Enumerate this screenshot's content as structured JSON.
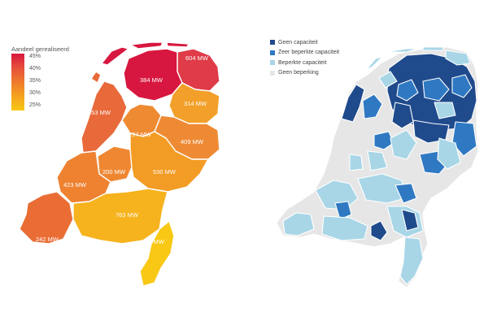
{
  "left_map": {
    "legend": {
      "title": "Aandeel gerealiseerd",
      "ticks": [
        "45%",
        "40%",
        "35%",
        "30%",
        "25%"
      ],
      "colors": [
        "#d7173f",
        "#e5503b",
        "#ee7a2c",
        "#f4a31e",
        "#f7c815"
      ]
    },
    "regions": [
      {
        "id": "groningen",
        "label": "604 MW",
        "color": "#df3b48"
      },
      {
        "id": "friesland",
        "label": "384 MW",
        "color": "#d7173f"
      },
      {
        "id": "drenthe",
        "label": "314 MW",
        "color": "#f2a02a"
      },
      {
        "id": "flevoland",
        "label": "297 MW",
        "color": "#ee8a32"
      },
      {
        "id": "noord-holland",
        "label": "453 MW",
        "color": "#e8693a"
      },
      {
        "id": "overijssel",
        "label": "409 MW",
        "color": "#ef8a34"
      },
      {
        "id": "gelderland",
        "label": "530 MW",
        "color": "#f39c25"
      },
      {
        "id": "utrecht",
        "label": "200 MW",
        "color": "#ef8732"
      },
      {
        "id": "zuid-holland",
        "label": "423 MW",
        "color": "#ee8231"
      },
      {
        "id": "zeeland",
        "label": "242 MW",
        "color": "#ea6d35"
      },
      {
        "id": "noord-brabant",
        "label": "763 MW",
        "color": "#f6b31d"
      },
      {
        "id": "limburg",
        "label": "293 MW",
        "color": "#f8c815"
      }
    ]
  },
  "right_map": {
    "legend": [
      {
        "label": "Geen capaciteit",
        "color": "#1f4a8c"
      },
      {
        "label": "Zeer beperkte capaciteit",
        "color": "#2f79c2"
      },
      {
        "label": "Beperkte capaciteit",
        "color": "#a8d6e7"
      },
      {
        "label": "Geen beperking",
        "color": "#e6e6e6"
      }
    ],
    "colors": {
      "none": "#1f4a8c",
      "very_limited": "#2f79c2",
      "limited": "#a8d6e7",
      "no_limit": "#e6e6e6"
    }
  }
}
